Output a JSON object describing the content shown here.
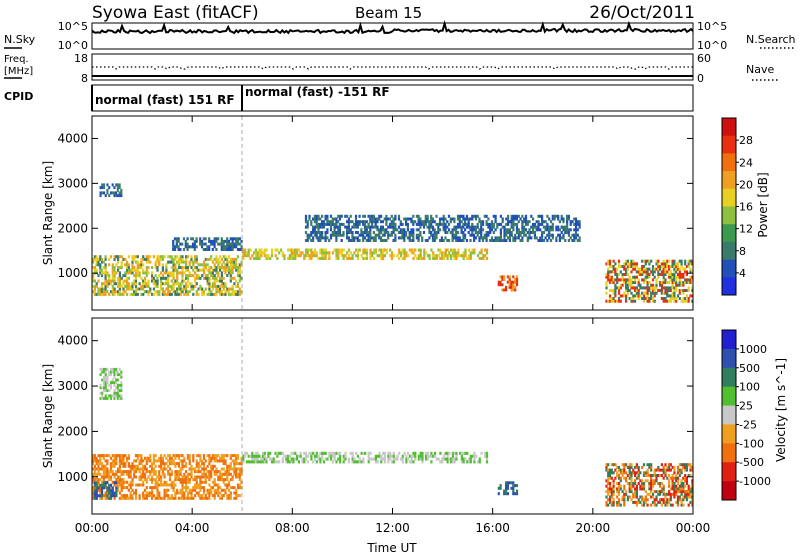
{
  "header": {
    "title": "Syowa East (fitACF)",
    "beam": "Beam 15",
    "date": "26/Oct/2011"
  },
  "status_strip": {
    "left_labels": {
      "nsky": "N.Sky",
      "freq_line1": "Freq.",
      "freq_line2": "[MHz]",
      "cpid": "CPID"
    },
    "right_labels": {
      "nsearch": "N.Search",
      "nave": "Nave"
    },
    "noise_ticks": {
      "top": "10^5",
      "bottom": "10^0"
    },
    "freq_ticks": {
      "top": "18",
      "bottom": "8"
    },
    "nave_ticks": {
      "top": "60",
      "bottom": "0"
    },
    "cpid_segments": [
      {
        "label": "normal (fast) 151 RF",
        "start_hour": 0,
        "end_hour": 6
      },
      {
        "label": "normal (fast) -151 RF",
        "start_hour": 6,
        "end_hour": 24
      }
    ]
  },
  "axes": {
    "ylabel": "Slant Range [km]",
    "xlabel": "Time UT",
    "x_ticks": [
      "00:00",
      "04:00",
      "08:00",
      "12:00",
      "16:00",
      "20:00",
      "00:00"
    ],
    "y_ticks": [
      "1000",
      "2000",
      "3000",
      "4000"
    ]
  },
  "colors": {
    "power_scale": [
      "#2030e0",
      "#2050b8",
      "#3a7a6a",
      "#3c9a50",
      "#8cc040",
      "#e8d020",
      "#f0a020",
      "#f07010",
      "#e83010",
      "#d01010"
    ],
    "velocity_scale": [
      "#2020d0",
      "#3050b0",
      "#2f7f5f",
      "#50c030",
      "#c8c8c8",
      "#f0a020",
      "#f07010",
      "#e02010",
      "#c00010"
    ]
  },
  "chart_data": [
    {
      "type": "heatmap",
      "name": "Power",
      "colorbar_label": "Power [dB]",
      "colorbar_ticks": [
        "4",
        "8",
        "12",
        "16",
        "20",
        "24",
        "28"
      ],
      "zlim": [
        0,
        30
      ],
      "xlim": [
        "00:00",
        "24:00"
      ],
      "ylim": [
        180,
        4500
      ],
      "regions": [
        {
          "t0": 0.0,
          "t1": 6.0,
          "r0": 500,
          "r1": 1400,
          "values": [
            8,
            12,
            16,
            20
          ]
        },
        {
          "t0": 0.3,
          "t1": 1.2,
          "r0": 2700,
          "r1": 3000,
          "values": [
            4,
            8
          ]
        },
        {
          "t0": 3.2,
          "t1": 6.0,
          "r0": 1500,
          "r1": 1800,
          "values": [
            4,
            8
          ]
        },
        {
          "t0": 6.0,
          "t1": 15.8,
          "r0": 1300,
          "r1": 1550,
          "values": [
            12,
            16,
            20
          ]
        },
        {
          "t0": 16.2,
          "t1": 17.0,
          "r0": 600,
          "r1": 950,
          "values": [
            20,
            24
          ]
        },
        {
          "t0": 20.5,
          "t1": 24.0,
          "r0": 350,
          "r1": 1300,
          "values": [
            8,
            16,
            24
          ]
        },
        {
          "t0": 8.5,
          "t1": 19.5,
          "r0": 1700,
          "r1": 2300,
          "values": [
            4,
            8
          ]
        }
      ]
    },
    {
      "type": "heatmap",
      "name": "Velocity",
      "colorbar_label": "Velocity [m s^-1]",
      "colorbar_ticks": [
        "1000",
        "500",
        "100",
        "25",
        "-25",
        "-100",
        "-500",
        "-1000"
      ],
      "zlim": [
        -1000,
        1000
      ],
      "xlim": [
        "00:00",
        "24:00"
      ],
      "ylim": [
        180,
        4500
      ],
      "regions": [
        {
          "t0": 0.0,
          "t1": 6.0,
          "r0": 500,
          "r1": 1500,
          "values": [
            -100,
            -500
          ]
        },
        {
          "t0": 0.0,
          "t1": 1.0,
          "r0": 500,
          "r1": 900,
          "values": [
            100,
            500
          ]
        },
        {
          "t0": 0.3,
          "t1": 1.2,
          "r0": 2700,
          "r1": 3400,
          "values": [
            25,
            -25
          ]
        },
        {
          "t0": 6.0,
          "t1": 15.8,
          "r0": 1300,
          "r1": 1550,
          "values": [
            25,
            -25
          ]
        },
        {
          "t0": 16.2,
          "t1": 17.0,
          "r0": 600,
          "r1": 900,
          "values": [
            100,
            500
          ]
        },
        {
          "t0": 20.5,
          "t1": 24.0,
          "r0": 350,
          "r1": 1300,
          "values": [
            100,
            -100,
            -500,
            -1000
          ]
        }
      ]
    }
  ]
}
